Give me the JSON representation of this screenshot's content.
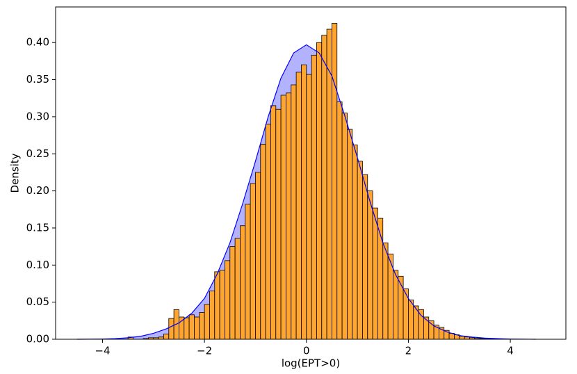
{
  "chart_data": {
    "type": "histogram",
    "xlabel": "log(EPT>0)",
    "ylabel": "Density",
    "bins": [
      -3.5,
      -3.4,
      -3.3,
      -3.2,
      -3.1,
      -3.0,
      -2.9,
      -2.8,
      -2.7,
      -2.6,
      -2.5,
      -2.4,
      -2.3,
      -2.2,
      -2.1,
      -2.0,
      -1.9,
      -1.8,
      -1.7,
      -1.6,
      -1.5,
      -1.4,
      -1.3,
      -1.2,
      -1.1,
      -1.0,
      -0.9,
      -0.8,
      -0.7,
      -0.6,
      -0.5,
      -0.4,
      -0.3,
      -0.2,
      -0.1,
      0.0,
      0.1,
      0.2,
      0.3,
      0.4,
      0.5,
      0.6,
      0.7,
      0.8,
      0.9,
      1.0,
      1.1,
      1.2,
      1.3,
      1.4,
      1.5,
      1.6,
      1.7,
      1.8,
      1.9,
      2.0,
      2.1,
      2.2,
      2.3,
      2.4,
      2.5,
      2.6,
      2.7,
      2.8,
      2.9,
      3.0,
      3.1,
      3.2,
      3.3,
      3.4,
      3.5,
      3.6,
      3.7
    ],
    "values": [
      0.003,
      0,
      0,
      0.001,
      0.002,
      0.002,
      0.003,
      0.007,
      0.028,
      0.04,
      0.03,
      0.029,
      0.033,
      0.03,
      0.036,
      0.047,
      0.065,
      0.091,
      0.093,
      0.106,
      0.125,
      0.136,
      0.153,
      0.182,
      0.21,
      0.225,
      0.263,
      0.29,
      0.315,
      0.31,
      0.329,
      0.332,
      0.343,
      0.36,
      0.37,
      0.357,
      0.383,
      0.4,
      0.41,
      0.418,
      0.426,
      0.32,
      0.305,
      0.283,
      0.262,
      0.24,
      0.222,
      0.2,
      0.177,
      0.163,
      0.13,
      0.115,
      0.093,
      0.085,
      0.068,
      0.053,
      0.045,
      0.04,
      0.03,
      0.025,
      0.019,
      0.016,
      0.012,
      0.008,
      0.006,
      0.004,
      0.003,
      0.002,
      0.001,
      0.001,
      0.001,
      0.001
    ],
    "color": "#ffa532",
    "kde": {
      "color": "#0000ff",
      "x": [
        -4.5,
        -4.25,
        -4.0,
        -3.75,
        -3.5,
        -3.25,
        -3.0,
        -2.75,
        -2.5,
        -2.25,
        -2.0,
        -1.75,
        -1.5,
        -1.25,
        -1.0,
        -0.75,
        -0.5,
        -0.25,
        0,
        0.25,
        0.5,
        0.75,
        1.0,
        1.25,
        1.5,
        1.75,
        2.0,
        2.25,
        2.5,
        2.75,
        3.0,
        3.25,
        3.5,
        3.75,
        4.0,
        4.25,
        4.5
      ],
      "values": [
        0.0,
        0.0001,
        0.0003,
        0.0008,
        0.002,
        0.004,
        0.008,
        0.014,
        0.022,
        0.035,
        0.055,
        0.088,
        0.13,
        0.183,
        0.24,
        0.3,
        0.352,
        0.386,
        0.397,
        0.386,
        0.355,
        0.302,
        0.245,
        0.185,
        0.13,
        0.087,
        0.055,
        0.032,
        0.018,
        0.01,
        0.005,
        0.003,
        0.0015,
        0.0008,
        0.0003,
        0.0001,
        0.0
      ]
    },
    "xlim": [
      -4.92,
      5.09
    ],
    "ylim": [
      0,
      0.448
    ],
    "xticks": [
      {
        "value": -4,
        "label": "−4"
      },
      {
        "value": -2,
        "label": "−2"
      },
      0,
      2,
      4
    ],
    "yticks": [
      {
        "value": 0,
        "label": "0.00"
      },
      {
        "value": 0.05,
        "label": "0.05"
      },
      {
        "value": 0.1,
        "label": "0.10"
      },
      {
        "value": 0.15,
        "label": "0.15"
      },
      {
        "value": 0.2,
        "label": "0.20"
      },
      {
        "value": 0.25,
        "label": "0.25"
      },
      {
        "value": 0.3,
        "label": "0.30"
      },
      {
        "value": 0.35,
        "label": "0.35"
      },
      {
        "value": 0.4,
        "label": "0.40"
      }
    ]
  }
}
